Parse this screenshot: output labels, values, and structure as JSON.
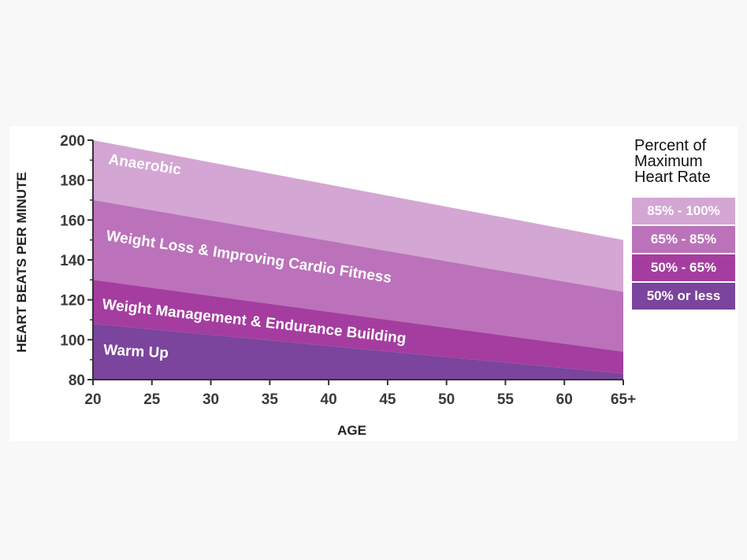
{
  "chart_data": {
    "type": "area",
    "xlabel": "AGE",
    "ylabel": "HEART BEATS PER MINUTE",
    "x": [
      20,
      65
    ],
    "x_tick_labels": [
      "20",
      "25",
      "30",
      "35",
      "40",
      "45",
      "50",
      "55",
      "60",
      "65+"
    ],
    "x_tick_values": [
      20,
      25,
      30,
      35,
      40,
      45,
      50,
      55,
      60,
      65
    ],
    "ylim": [
      80,
      200
    ],
    "xlim": [
      20,
      65
    ],
    "y_tick_values": [
      80,
      100,
      120,
      140,
      160,
      180,
      200
    ],
    "grid": false,
    "bands": [
      {
        "name": "Anaerobic",
        "upper": [
          200,
          150
        ],
        "lower": [
          170,
          124
        ],
        "color": "#d4a6d3"
      },
      {
        "name": "Weight Loss & Improving Cardio Fitness",
        "upper": [
          170,
          124
        ],
        "lower": [
          130,
          94
        ],
        "color": "#bb72ba"
      },
      {
        "name": "Weight Management & Endurance Building",
        "upper": [
          130,
          94
        ],
        "lower": [
          108,
          83
        ],
        "color": "#a43d9f"
      },
      {
        "name": "Warm Up",
        "upper": [
          108,
          83
        ],
        "lower": [
          80,
          80
        ],
        "color": "#7b449d"
      }
    ],
    "legend": {
      "title": "Percent of Maximum Heart Rate",
      "position": "right",
      "items": [
        {
          "label": "85% - 100%",
          "color": "#d4a6d3"
        },
        {
          "label": "65% - 85%",
          "color": "#bb72ba"
        },
        {
          "label": "50% - 65%",
          "color": "#a43d9f"
        },
        {
          "label": "50% or less",
          "color": "#7b449d"
        }
      ]
    }
  }
}
